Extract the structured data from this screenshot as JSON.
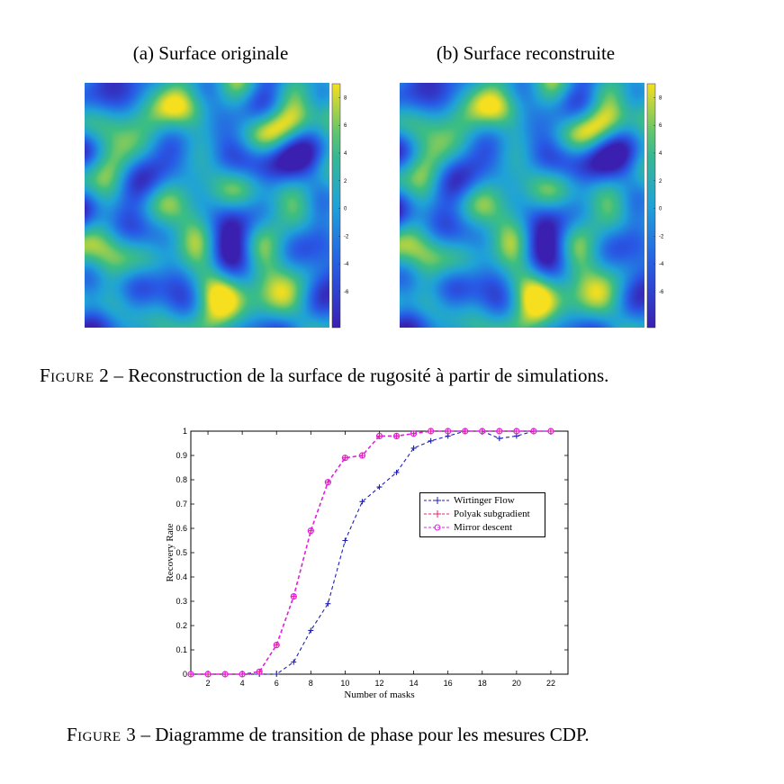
{
  "figure2": {
    "panel_a_title": "(a) Surface originale",
    "panel_b_title": "(b) Surface reconstruite",
    "caption_label": "Figure 2",
    "caption_text": " – Reconstruction de la surface de rugosité à partir de simulations.",
    "colorbar_ticks": [
      "8",
      "6",
      "4",
      "2",
      "0",
      "-2",
      "-4",
      "-6"
    ],
    "colors": {
      "low": "#3a1fb0",
      "mid": "#1fa2d8",
      "high": "#f5df1e"
    }
  },
  "figure3": {
    "caption_label": "Figure 3",
    "caption_text": " – Diagramme de transition de phase pour les mesures CDP."
  },
  "chart_data": {
    "type": "line",
    "xlabel": "Number of masks",
    "ylabel": "Recovery Rate",
    "xlim": [
      1,
      23
    ],
    "ylim": [
      0,
      1
    ],
    "xticks": [
      2,
      4,
      6,
      8,
      10,
      12,
      14,
      16,
      18,
      20,
      22
    ],
    "yticks": [
      0,
      0.1,
      0.2,
      0.3,
      0.4,
      0.5,
      0.6,
      0.7,
      0.8,
      0.9,
      1
    ],
    "grid": false,
    "legend_position": "center-right",
    "series": [
      {
        "name": "Wirtinger Flow",
        "color": "#1f1fb4",
        "marker": "plus",
        "x": [
          1,
          2,
          3,
          4,
          5,
          6,
          7,
          8,
          9,
          10,
          11,
          12,
          13,
          14,
          15,
          16,
          17,
          18,
          19,
          20,
          21,
          22
        ],
        "y": [
          0,
          0,
          0,
          0,
          0,
          0,
          0.05,
          0.18,
          0.29,
          0.55,
          0.71,
          0.77,
          0.83,
          0.93,
          0.96,
          0.98,
          1,
          1,
          0.97,
          0.98,
          1,
          1
        ]
      },
      {
        "name": "Polyak subgradient",
        "color": "#e6246e",
        "marker": "plus",
        "x": [
          1,
          2,
          3,
          4,
          5,
          6,
          7,
          8,
          9,
          10,
          11,
          12,
          13,
          14,
          15,
          16,
          17,
          18,
          19,
          20,
          21,
          22
        ],
        "y": [
          0,
          0,
          0,
          0,
          0.01,
          0.12,
          0.32,
          0.59,
          0.79,
          0.89,
          0.9,
          0.98,
          0.98,
          0.99,
          1,
          1,
          1,
          1,
          1,
          1,
          1,
          1
        ]
      },
      {
        "name": "Mirror descent",
        "color": "#e020e0",
        "marker": "circle",
        "x": [
          1,
          2,
          3,
          4,
          5,
          6,
          7,
          8,
          9,
          10,
          11,
          12,
          13,
          14,
          15,
          16,
          17,
          18,
          19,
          20,
          21,
          22
        ],
        "y": [
          0,
          0,
          0,
          0,
          0.01,
          0.12,
          0.32,
          0.59,
          0.79,
          0.89,
          0.9,
          0.98,
          0.98,
          0.99,
          1,
          1,
          1,
          1,
          1,
          1,
          1,
          1
        ]
      }
    ]
  }
}
